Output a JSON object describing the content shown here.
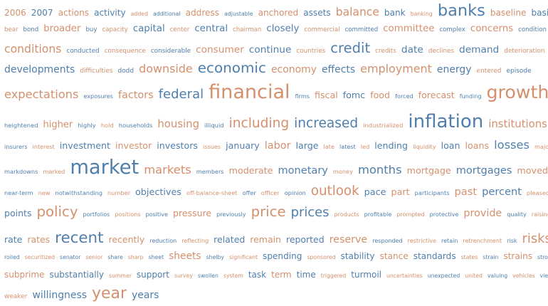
{
  "colors": {
    "orange": "#d4906c",
    "blue": "#4f7fad"
  },
  "rows": [
    {
      "h": 30,
      "words": [
        {
          "t": "2006",
          "s": 14,
          "c": 0
        },
        {
          "t": "2007",
          "s": 14,
          "c": 1
        },
        {
          "t": "actions",
          "s": 14,
          "c": 0
        },
        {
          "t": "activity",
          "s": 14,
          "c": 1
        },
        {
          "t": "added",
          "s": 9,
          "c": 0
        },
        {
          "t": "additional",
          "s": 9,
          "c": 1
        },
        {
          "t": "address",
          "s": 14,
          "c": 0
        },
        {
          "t": "adjustable",
          "s": 9,
          "c": 1
        },
        {
          "t": "anchored",
          "s": 14,
          "c": 0
        },
        {
          "t": "assets",
          "s": 14,
          "c": 1
        },
        {
          "t": "balance",
          "s": 18,
          "c": 0
        },
        {
          "t": "bank",
          "s": 14,
          "c": 1
        },
        {
          "t": "banking",
          "s": 9,
          "c": 0
        },
        {
          "t": "banks",
          "s": 26,
          "c": 1
        },
        {
          "t": "baseline",
          "s": 14,
          "c": 0
        },
        {
          "t": "basis",
          "s": 14,
          "c": 1
        }
      ]
    },
    {
      "h": 24,
      "words": [
        {
          "t": "bear",
          "s": 9,
          "c": 0
        },
        {
          "t": "bond",
          "s": 9,
          "c": 1
        },
        {
          "t": "broader",
          "s": 14,
          "c": 0
        },
        {
          "t": "buy",
          "s": 9,
          "c": 1
        },
        {
          "t": "capacity",
          "s": 9,
          "c": 0
        },
        {
          "t": "capital",
          "s": 14,
          "c": 1
        },
        {
          "t": "center",
          "s": 9,
          "c": 0
        },
        {
          "t": "central",
          "s": 14,
          "c": 1
        },
        {
          "t": "chairman",
          "s": 9,
          "c": 0
        },
        {
          "t": "closely",
          "s": 14,
          "c": 1
        },
        {
          "t": "commercial",
          "s": 9,
          "c": 0
        },
        {
          "t": "committed",
          "s": 9,
          "c": 1
        },
        {
          "t": "committee",
          "s": 14,
          "c": 0
        },
        {
          "t": "complex",
          "s": 9,
          "c": 1
        },
        {
          "t": "concerns",
          "s": 14,
          "c": 0
        },
        {
          "t": "condition",
          "s": 9,
          "c": 1
        }
      ]
    },
    {
      "h": 28,
      "words": [
        {
          "t": "conditions",
          "s": 16,
          "c": 0
        },
        {
          "t": "conducted",
          "s": 9,
          "c": 1
        },
        {
          "t": "consequence",
          "s": 9,
          "c": 0
        },
        {
          "t": "considerable",
          "s": 9,
          "c": 1
        },
        {
          "t": "consumer",
          "s": 14,
          "c": 0
        },
        {
          "t": "continue",
          "s": 14,
          "c": 1
        },
        {
          "t": "countries",
          "s": 9,
          "c": 0
        },
        {
          "t": "credit",
          "s": 20,
          "c": 1
        },
        {
          "t": "credits",
          "s": 9,
          "c": 0
        },
        {
          "t": "date",
          "s": 14,
          "c": 1
        },
        {
          "t": "declines",
          "s": 9,
          "c": 0
        },
        {
          "t": "demand",
          "s": 14,
          "c": 1
        },
        {
          "t": "deterioration",
          "s": 9,
          "c": 0
        }
      ]
    },
    {
      "h": 30,
      "words": [
        {
          "t": "developments",
          "s": 14,
          "c": 1
        },
        {
          "t": "difficulties",
          "s": 9,
          "c": 0
        },
        {
          "t": "dodd",
          "s": 9,
          "c": 1
        },
        {
          "t": "downside",
          "s": 16,
          "c": 0
        },
        {
          "t": "economic",
          "s": 20,
          "c": 1
        },
        {
          "t": "economy",
          "s": 14,
          "c": 0
        },
        {
          "t": "effects",
          "s": 14,
          "c": 1
        },
        {
          "t": "employment",
          "s": 16,
          "c": 0
        },
        {
          "t": "energy",
          "s": 14,
          "c": 1
        },
        {
          "t": "entered",
          "s": 9,
          "c": 0
        },
        {
          "t": "episode",
          "s": 9,
          "c": 1
        }
      ]
    },
    {
      "h": 42,
      "words": [
        {
          "t": "expectations",
          "s": 18,
          "c": 0
        },
        {
          "t": "exposures",
          "s": 9,
          "c": 1
        },
        {
          "t": "factors",
          "s": 16,
          "c": 0
        },
        {
          "t": "federal",
          "s": 20,
          "c": 1
        },
        {
          "t": "financial",
          "s": 30,
          "c": 0
        },
        {
          "t": "firms",
          "s": 9,
          "c": 1
        },
        {
          "t": "fiscal",
          "s": 14,
          "c": 0
        },
        {
          "t": "fomc",
          "s": 14,
          "c": 1
        },
        {
          "t": "food",
          "s": 14,
          "c": 0
        },
        {
          "t": "forced",
          "s": 9,
          "c": 1
        },
        {
          "t": "forecast",
          "s": 14,
          "c": 0
        },
        {
          "t": "funding",
          "s": 9,
          "c": 1
        },
        {
          "t": "growth",
          "s": 28,
          "c": 0
        }
      ]
    },
    {
      "h": 38,
      "words": [
        {
          "t": "heightened",
          "s": 9,
          "c": 1
        },
        {
          "t": "higher",
          "s": 14,
          "c": 0
        },
        {
          "t": "highly",
          "s": 9,
          "c": 1
        },
        {
          "t": "hold",
          "s": 9,
          "c": 0
        },
        {
          "t": "households",
          "s": 9,
          "c": 1
        },
        {
          "t": "housing",
          "s": 16,
          "c": 0
        },
        {
          "t": "illiquid",
          "s": 9,
          "c": 1
        },
        {
          "t": "including",
          "s": 20,
          "c": 0
        },
        {
          "t": "increased",
          "s": 20,
          "c": 1
        },
        {
          "t": "industrialized",
          "s": 9,
          "c": 0
        },
        {
          "t": "inflation",
          "s": 28,
          "c": 1
        },
        {
          "t": "institutions",
          "s": 16,
          "c": 0
        }
      ]
    },
    {
      "h": 26,
      "words": [
        {
          "t": "insurers",
          "s": 9,
          "c": 1
        },
        {
          "t": "interest",
          "s": 9,
          "c": 0
        },
        {
          "t": "investment",
          "s": 14,
          "c": 1
        },
        {
          "t": "investor",
          "s": 14,
          "c": 0
        },
        {
          "t": "investors",
          "s": 14,
          "c": 1
        },
        {
          "t": "issues",
          "s": 9,
          "c": 0
        },
        {
          "t": "january",
          "s": 14,
          "c": 1
        },
        {
          "t": "labor",
          "s": 16,
          "c": 0
        },
        {
          "t": "large",
          "s": 14,
          "c": 1
        },
        {
          "t": "late",
          "s": 9,
          "c": 0
        },
        {
          "t": "latest",
          "s": 9,
          "c": 1
        },
        {
          "t": "led",
          "s": 9,
          "c": 0
        },
        {
          "t": "lending",
          "s": 14,
          "c": 1
        },
        {
          "t": "liquidity",
          "s": 9,
          "c": 0
        },
        {
          "t": "loan",
          "s": 14,
          "c": 1
        },
        {
          "t": "loans",
          "s": 14,
          "c": 0
        },
        {
          "t": "losses",
          "s": 18,
          "c": 1
        },
        {
          "t": "major",
          "s": 9,
          "c": 0
        }
      ]
    },
    {
      "h": 38,
      "words": [
        {
          "t": "markdowns",
          "s": 9,
          "c": 1
        },
        {
          "t": "marked",
          "s": 9,
          "c": 0
        },
        {
          "t": "market",
          "s": 30,
          "c": 1
        },
        {
          "t": "markets",
          "s": 18,
          "c": 0
        },
        {
          "t": "members",
          "s": 9,
          "c": 1
        },
        {
          "t": "moderate",
          "s": 14,
          "c": 0
        },
        {
          "t": "monetary",
          "s": 16,
          "c": 1
        },
        {
          "t": "money",
          "s": 9,
          "c": 0
        },
        {
          "t": "months",
          "s": 18,
          "c": 1
        },
        {
          "t": "mortgage",
          "s": 14,
          "c": 0
        },
        {
          "t": "mortgages",
          "s": 16,
          "c": 1
        },
        {
          "t": "moved",
          "s": 14,
          "c": 0
        }
      ]
    },
    {
      "h": 28,
      "words": [
        {
          "t": "near-term",
          "s": 9,
          "c": 1
        },
        {
          "t": "new",
          "s": 9,
          "c": 0
        },
        {
          "t": "notwithstanding",
          "s": 9,
          "c": 1
        },
        {
          "t": "number",
          "s": 9,
          "c": 0
        },
        {
          "t": "objectives",
          "s": 14,
          "c": 1
        },
        {
          "t": "off-balance-sheet",
          "s": 9,
          "c": 0
        },
        {
          "t": "offer",
          "s": 9,
          "c": 1
        },
        {
          "t": "officer",
          "s": 9,
          "c": 0
        },
        {
          "t": "opinion",
          "s": 9,
          "c": 1
        },
        {
          "t": "outlook",
          "s": 20,
          "c": 0
        },
        {
          "t": "pace",
          "s": 14,
          "c": 1
        },
        {
          "t": "part",
          "s": 14,
          "c": 0
        },
        {
          "t": "participants",
          "s": 9,
          "c": 1
        },
        {
          "t": "past",
          "s": 16,
          "c": 0
        },
        {
          "t": "percent",
          "s": 16,
          "c": 1
        },
        {
          "t": "pleased",
          "s": 9,
          "c": 0
        }
      ]
    },
    {
      "h": 36,
      "words": [
        {
          "t": "points",
          "s": 14,
          "c": 1
        },
        {
          "t": "policy",
          "s": 22,
          "c": 0
        },
        {
          "t": "portfolios",
          "s": 9,
          "c": 1
        },
        {
          "t": "positions",
          "s": 9,
          "c": 0
        },
        {
          "t": "positive",
          "s": 9,
          "c": 1
        },
        {
          "t": "pressure",
          "s": 14,
          "c": 0
        },
        {
          "t": "previously",
          "s": 9,
          "c": 1
        },
        {
          "t": "price",
          "s": 22,
          "c": 0
        },
        {
          "t": "prices",
          "s": 20,
          "c": 1
        },
        {
          "t": "products",
          "s": 9,
          "c": 0
        },
        {
          "t": "profitable",
          "s": 9,
          "c": 1
        },
        {
          "t": "prompted",
          "s": 9,
          "c": 0
        },
        {
          "t": "protective",
          "s": 9,
          "c": 1
        },
        {
          "t": "provide",
          "s": 16,
          "c": 0
        },
        {
          "t": "quality",
          "s": 9,
          "c": 1
        },
        {
          "t": "raising",
          "s": 9,
          "c": 0
        }
      ]
    },
    {
      "h": 30,
      "words": [
        {
          "t": "rate",
          "s": 14,
          "c": 1
        },
        {
          "t": "rates",
          "s": 14,
          "c": 0
        },
        {
          "t": "recent",
          "s": 24,
          "c": 1
        },
        {
          "t": "recently",
          "s": 14,
          "c": 0
        },
        {
          "t": "reduction",
          "s": 9,
          "c": 1
        },
        {
          "t": "reflecting",
          "s": 9,
          "c": 0
        },
        {
          "t": "related",
          "s": 14,
          "c": 1
        },
        {
          "t": "remain",
          "s": 14,
          "c": 0
        },
        {
          "t": "reported",
          "s": 14,
          "c": 1
        },
        {
          "t": "reserve",
          "s": 16,
          "c": 0
        },
        {
          "t": "responded",
          "s": 9,
          "c": 1
        },
        {
          "t": "restrictive",
          "s": 9,
          "c": 0
        },
        {
          "t": "retain",
          "s": 9,
          "c": 1
        },
        {
          "t": "retrenchment",
          "s": 9,
          "c": 0
        },
        {
          "t": "risk",
          "s": 9,
          "c": 1
        },
        {
          "t": "risks",
          "s": 20,
          "c": 0
        }
      ]
    },
    {
      "h": 26,
      "words": [
        {
          "t": "roiled",
          "s": 9,
          "c": 1
        },
        {
          "t": "securitized",
          "s": 9,
          "c": 0
        },
        {
          "t": "senator",
          "s": 9,
          "c": 1
        },
        {
          "t": "senior",
          "s": 9,
          "c": 0
        },
        {
          "t": "share",
          "s": 9,
          "c": 1
        },
        {
          "t": "sharp",
          "s": 9,
          "c": 0
        },
        {
          "t": "sheet",
          "s": 9,
          "c": 1
        },
        {
          "t": "sheets",
          "s": 16,
          "c": 0
        },
        {
          "t": "shelby",
          "s": 9,
          "c": 1
        },
        {
          "t": "significant",
          "s": 9,
          "c": 0
        },
        {
          "t": "spending",
          "s": 14,
          "c": 1
        },
        {
          "t": "sponsored",
          "s": 9,
          "c": 0
        },
        {
          "t": "stability",
          "s": 14,
          "c": 1
        },
        {
          "t": "stance",
          "s": 14,
          "c": 0
        },
        {
          "t": "standards",
          "s": 14,
          "c": 1
        },
        {
          "t": "states",
          "s": 9,
          "c": 0
        },
        {
          "t": "strain",
          "s": 9,
          "c": 1
        },
        {
          "t": "strains",
          "s": 14,
          "c": 0
        },
        {
          "t": "strong",
          "s": 9,
          "c": 1
        }
      ]
    },
    {
      "h": 22,
      "words": [
        {
          "t": "subprime",
          "s": 14,
          "c": 0
        },
        {
          "t": "substantially",
          "s": 14,
          "c": 1
        },
        {
          "t": "summer",
          "s": 9,
          "c": 0
        },
        {
          "t": "support",
          "s": 14,
          "c": 1
        },
        {
          "t": "survey",
          "s": 9,
          "c": 0
        },
        {
          "t": "swollen",
          "s": 9,
          "c": 1
        },
        {
          "t": "system",
          "s": 9,
          "c": 0
        },
        {
          "t": "task",
          "s": 14,
          "c": 1
        },
        {
          "t": "term",
          "s": 14,
          "c": 0
        },
        {
          "t": "time",
          "s": 14,
          "c": 1
        },
        {
          "t": "triggered",
          "s": 9,
          "c": 0
        },
        {
          "t": "turmoil",
          "s": 14,
          "c": 1
        },
        {
          "t": "uncertainties",
          "s": 9,
          "c": 0
        },
        {
          "t": "unexpected",
          "s": 9,
          "c": 1
        },
        {
          "t": "united",
          "s": 9,
          "c": 0
        },
        {
          "t": "valuing",
          "s": 9,
          "c": 1
        },
        {
          "t": "vehicles",
          "s": 9,
          "c": 0
        },
        {
          "t": "views",
          "s": 9,
          "c": 1
        }
      ]
    },
    {
      "h": 28,
      "words": [
        {
          "t": "weaker",
          "s": 9,
          "c": 0
        },
        {
          "t": "willingness",
          "s": 14,
          "c": 1
        },
        {
          "t": "year",
          "s": 22,
          "c": 0
        },
        {
          "t": "years",
          "s": 14,
          "c": 1
        }
      ]
    }
  ]
}
